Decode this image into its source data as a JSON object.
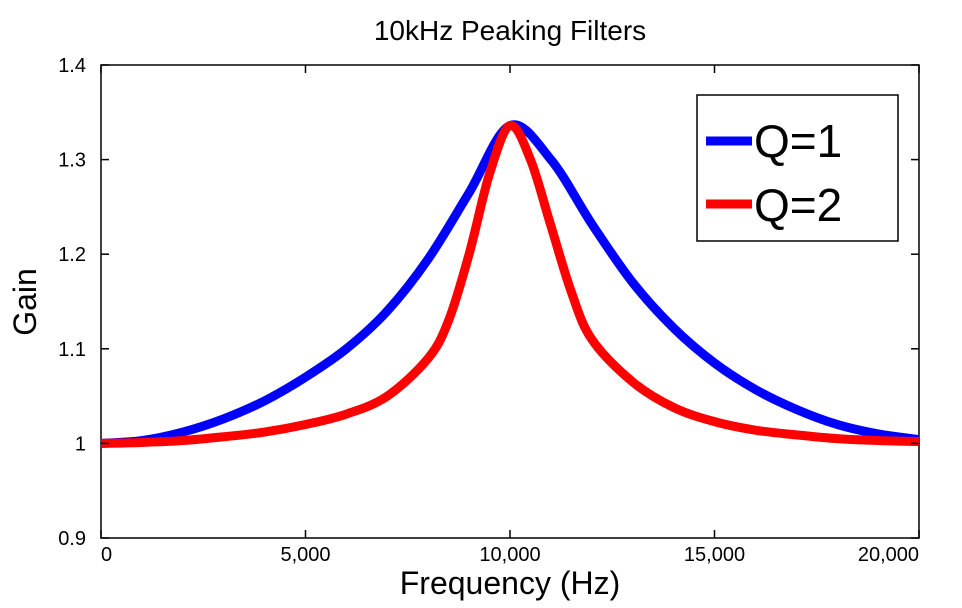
{
  "chart_data": {
    "type": "line",
    "title": "10kHz Peaking Filters",
    "xlabel": "Frequency (Hz)",
    "ylabel": "Gain",
    "xlim": [
      0,
      20000
    ],
    "ylim": [
      0.9,
      1.4
    ],
    "xticks": [
      0,
      5000,
      10000,
      15000,
      20000
    ],
    "xtick_labels": [
      "0",
      "5,000",
      "10,000",
      "15,000",
      "20,000"
    ],
    "yticks": [
      0.9,
      1.0,
      1.1,
      1.2,
      1.3,
      1.4
    ],
    "ytick_labels": [
      "0.9",
      "1",
      "1.1",
      "1.2",
      "1.3",
      "1.4"
    ],
    "grid": false,
    "legend_position": "top-right",
    "series": [
      {
        "name": "Q=1",
        "color": "#0000ff",
        "points": [
          [
            0,
            1.0
          ],
          [
            1000,
            1.003
          ],
          [
            2000,
            1.012
          ],
          [
            3000,
            1.026
          ],
          [
            4000,
            1.045
          ],
          [
            5000,
            1.07
          ],
          [
            6000,
            1.1
          ],
          [
            7000,
            1.14
          ],
          [
            8000,
            1.195
          ],
          [
            9000,
            1.265
          ],
          [
            10000,
            1.336
          ],
          [
            11000,
            1.3
          ],
          [
            12000,
            1.232
          ],
          [
            13000,
            1.17
          ],
          [
            14000,
            1.122
          ],
          [
            15000,
            1.085
          ],
          [
            16000,
            1.057
          ],
          [
            17000,
            1.036
          ],
          [
            18000,
            1.02
          ],
          [
            19000,
            1.01
          ],
          [
            20000,
            1.004
          ]
        ]
      },
      {
        "name": "Q=2",
        "color": "#ff0000",
        "points": [
          [
            0,
            1.0
          ],
          [
            1000,
            1.001
          ],
          [
            2000,
            1.003
          ],
          [
            3000,
            1.007
          ],
          [
            4000,
            1.012
          ],
          [
            5000,
            1.02
          ],
          [
            6000,
            1.031
          ],
          [
            7000,
            1.05
          ],
          [
            8000,
            1.09
          ],
          [
            8500,
            1.13
          ],
          [
            9000,
            1.2
          ],
          [
            9500,
            1.285
          ],
          [
            10000,
            1.336
          ],
          [
            10500,
            1.3
          ],
          [
            11000,
            1.23
          ],
          [
            11500,
            1.16
          ],
          [
            12000,
            1.11
          ],
          [
            13000,
            1.065
          ],
          [
            14000,
            1.038
          ],
          [
            15000,
            1.023
          ],
          [
            16000,
            1.014
          ],
          [
            17000,
            1.009
          ],
          [
            18000,
            1.005
          ],
          [
            19000,
            1.003
          ],
          [
            20000,
            1.002
          ]
        ]
      }
    ]
  }
}
